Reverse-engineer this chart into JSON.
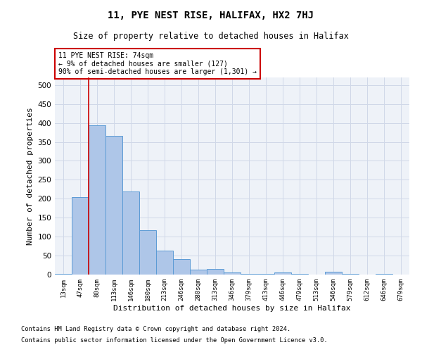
{
  "title": "11, PYE NEST RISE, HALIFAX, HX2 7HJ",
  "subtitle": "Size of property relative to detached houses in Halifax",
  "xlabel": "Distribution of detached houses by size in Halifax",
  "ylabel": "Number of detached properties",
  "categories": [
    "13sqm",
    "47sqm",
    "80sqm",
    "113sqm",
    "146sqm",
    "180sqm",
    "213sqm",
    "246sqm",
    "280sqm",
    "313sqm",
    "346sqm",
    "379sqm",
    "413sqm",
    "446sqm",
    "479sqm",
    "513sqm",
    "546sqm",
    "579sqm",
    "612sqm",
    "646sqm",
    "679sqm"
  ],
  "values": [
    2,
    205,
    393,
    365,
    220,
    117,
    63,
    40,
    13,
    14,
    6,
    1,
    1,
    6,
    1,
    0,
    7,
    2,
    0,
    1,
    0
  ],
  "bar_color": "#aec6e8",
  "bar_edge_color": "#5b9bd5",
  "grid_color": "#d0d8e8",
  "annotation_box_color": "#cc0000",
  "annotation_line1": "11 PYE NEST RISE: 74sqm",
  "annotation_line2": "← 9% of detached houses are smaller (127)",
  "annotation_line3": "90% of semi-detached houses are larger (1,301) →",
  "property_line_x": 1.5,
  "ylim": [
    0,
    520
  ],
  "yticks": [
    0,
    50,
    100,
    150,
    200,
    250,
    300,
    350,
    400,
    450,
    500
  ],
  "footnote1": "Contains HM Land Registry data © Crown copyright and database right 2024.",
  "footnote2": "Contains public sector information licensed under the Open Government Licence v3.0.",
  "bg_color": "#ffffff",
  "plot_bg_color": "#eef2f8"
}
